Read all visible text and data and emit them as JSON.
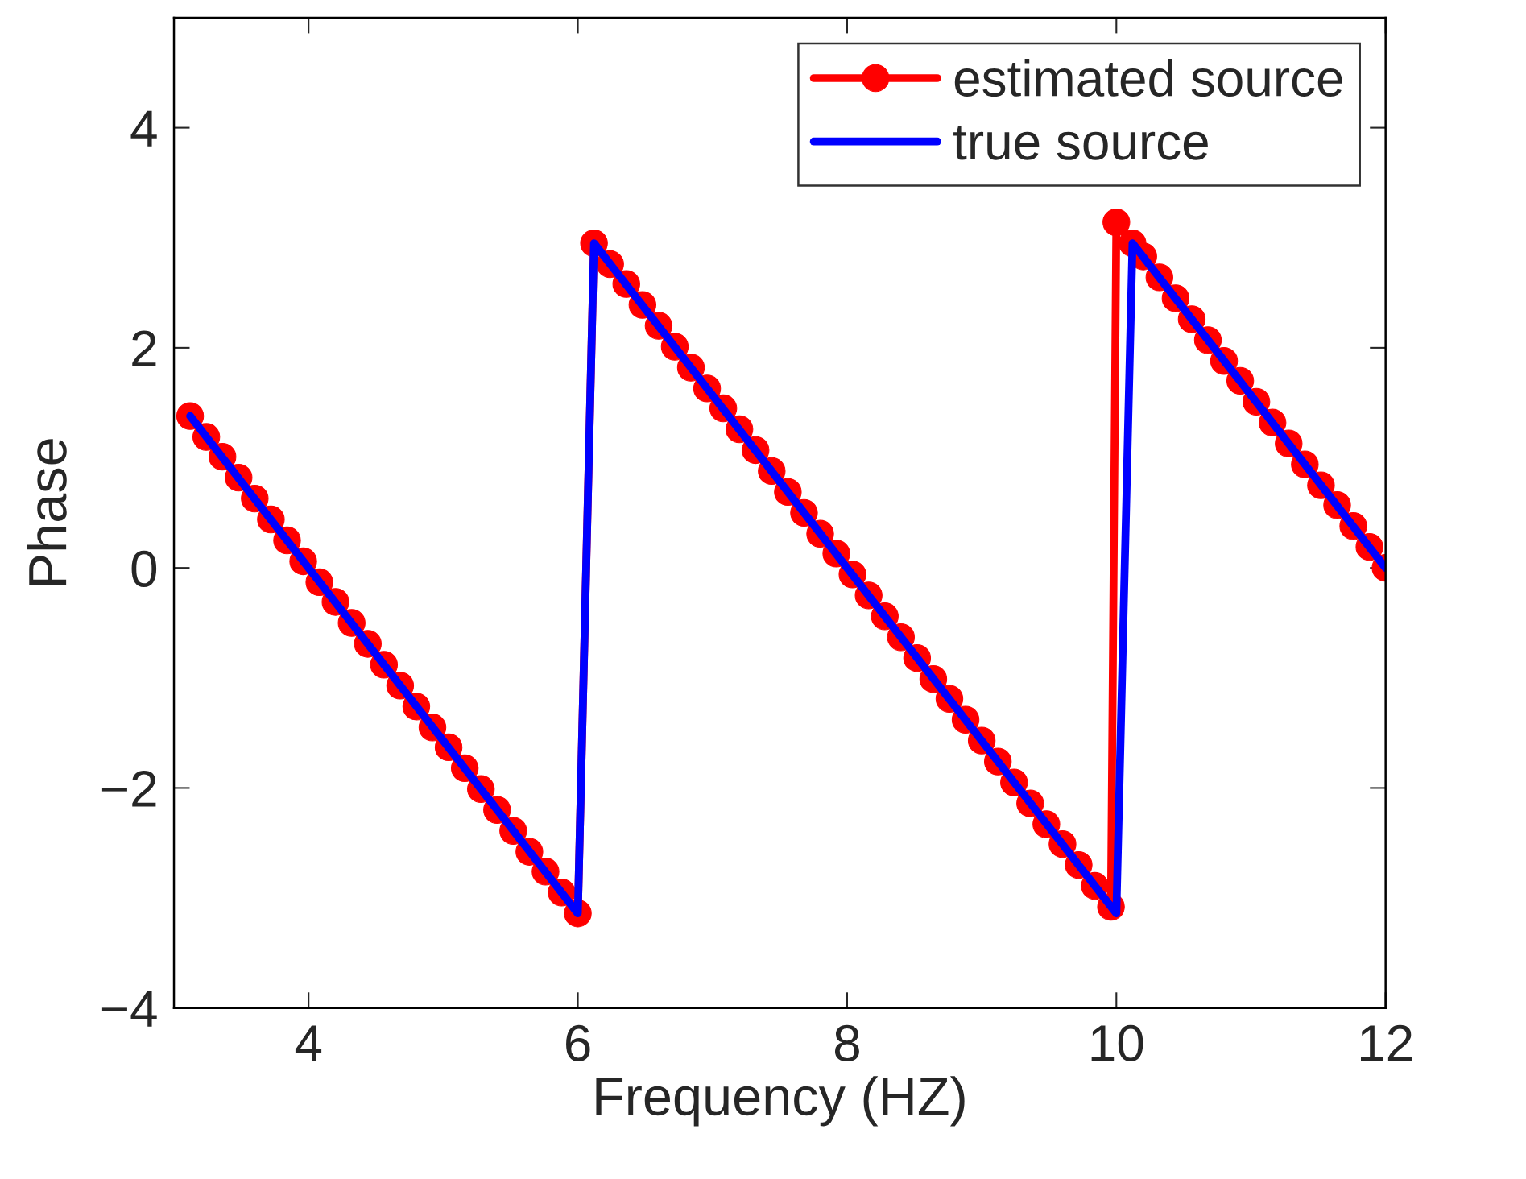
{
  "chart_data": {
    "type": "line",
    "xlabel": "Frequency (HZ)",
    "ylabel": "Phase",
    "xlim": [
      3,
      12
    ],
    "ylim": [
      -4,
      5
    ],
    "xticks": [
      4,
      6,
      8,
      10,
      12
    ],
    "yticks": [
      {
        "value": -4,
        "label": "−4"
      },
      {
        "value": -2,
        "label": "−2"
      },
      0,
      2,
      4
    ],
    "grid": false,
    "legend": "top right",
    "line_style": "solid",
    "series": [
      {
        "name": "estimated source",
        "color": "#ff0000",
        "marker": "circle",
        "x": [
          3.12,
          3.24,
          3.36,
          3.48,
          3.6,
          3.72,
          3.84,
          3.96,
          4.08,
          4.2,
          4.32,
          4.44,
          4.56,
          4.68,
          4.8,
          4.92,
          5.04,
          5.16,
          5.28,
          5.4,
          5.52,
          5.64,
          5.76,
          5.88,
          6.0,
          6.12,
          6.24,
          6.36,
          6.48,
          6.6,
          6.72,
          6.84,
          6.96,
          7.08,
          7.2,
          7.32,
          7.44,
          7.56,
          7.68,
          7.8,
          7.92,
          8.04,
          8.16,
          8.28,
          8.4,
          8.52,
          8.64,
          8.76,
          8.88,
          9.0,
          9.12,
          9.24,
          9.36,
          9.48,
          9.6,
          9.72,
          9.84,
          9.96,
          10.0,
          10.12,
          10.2,
          10.32,
          10.44,
          10.56,
          10.68,
          10.8,
          10.92,
          11.04,
          11.16,
          11.28,
          11.4,
          11.52,
          11.64,
          11.76,
          11.88,
          12.0
        ],
        "values": [
          1.38,
          1.19,
          1.01,
          0.82,
          0.63,
          0.44,
          0.25,
          0.06,
          -0.13,
          -0.31,
          -0.5,
          -0.69,
          -0.88,
          -1.07,
          -1.26,
          -1.45,
          -1.63,
          -1.82,
          -2.01,
          -2.2,
          -2.39,
          -2.58,
          -2.76,
          -2.95,
          -3.14,
          2.95,
          2.76,
          2.58,
          2.39,
          2.2,
          2.01,
          1.82,
          1.63,
          1.45,
          1.26,
          1.07,
          0.88,
          0.69,
          0.5,
          0.31,
          0.13,
          -0.06,
          -0.25,
          -0.44,
          -0.63,
          -0.82,
          -1.01,
          -1.19,
          -1.38,
          -1.57,
          -1.76,
          -1.95,
          -2.14,
          -2.33,
          -2.51,
          -2.7,
          -2.89,
          -3.08,
          3.14,
          2.95,
          2.83,
          2.64,
          2.45,
          2.26,
          2.07,
          1.88,
          1.7,
          1.51,
          1.32,
          1.13,
          0.94,
          0.75,
          0.57,
          0.38,
          0.19,
          0
        ]
      },
      {
        "name": "true source",
        "color": "#0000ff",
        "marker": "none",
        "x": [
          3.12,
          6.0,
          6.12,
          10.0,
          10.12,
          12.0
        ],
        "values": [
          1.38,
          -3.14,
          2.95,
          -3.14,
          2.95,
          0
        ]
      }
    ]
  }
}
